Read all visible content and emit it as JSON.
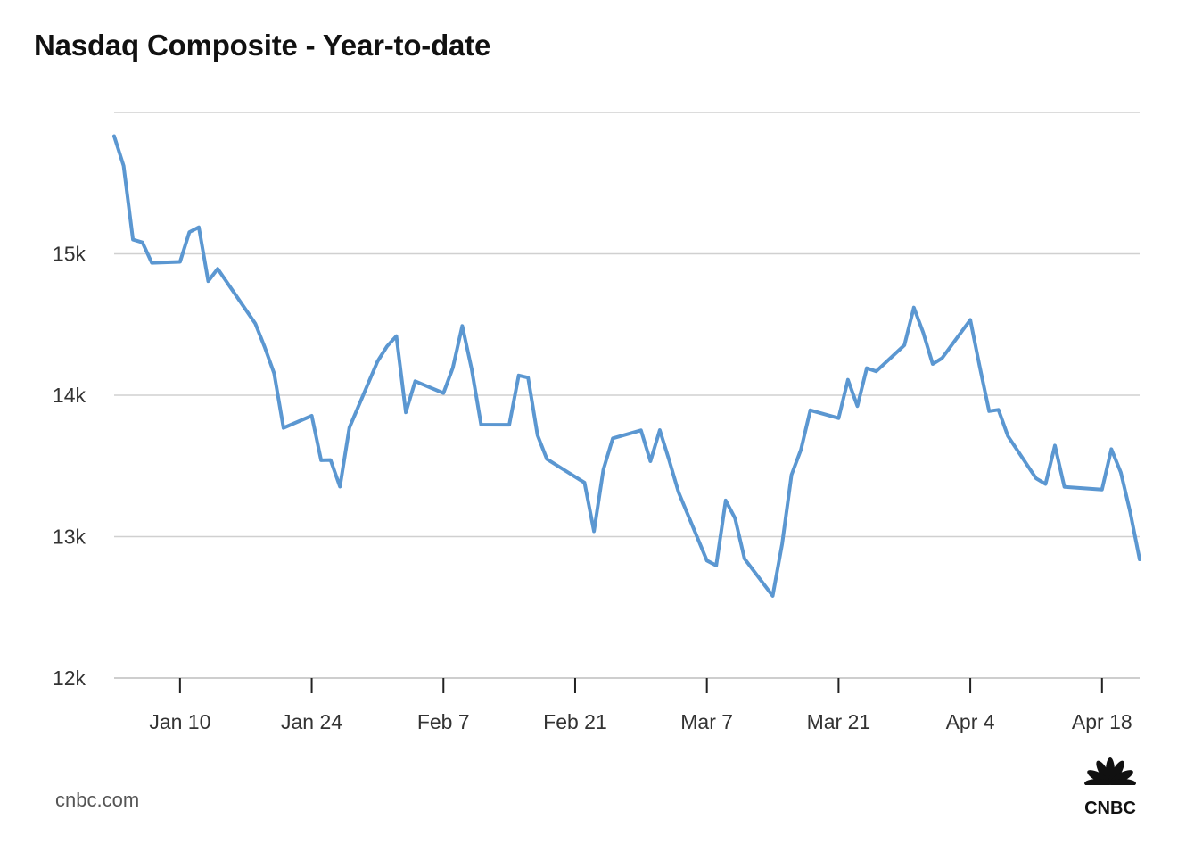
{
  "chart_data": {
    "type": "line",
    "title": "Nasdaq Composite - Year-to-date",
    "xlabel": "",
    "ylabel": "",
    "ylim": [
      12000,
      16000
    ],
    "yticks": [
      12000,
      13000,
      14000,
      15000
    ],
    "ytick_labels": [
      "12k",
      "13k",
      "14k",
      "15k"
    ],
    "xlim": [
      "2022-01-03",
      "2022-04-22"
    ],
    "xticks": [
      "2022-01-10",
      "2022-01-24",
      "2022-02-07",
      "2022-02-21",
      "2022-03-07",
      "2022-03-21",
      "2022-04-04",
      "2022-04-18"
    ],
    "xtick_labels": [
      "Jan 10",
      "Jan 24",
      "Feb 7",
      "Feb 21",
      "Mar 7",
      "Mar 21",
      "Apr 4",
      "Apr 18"
    ],
    "grid": true,
    "series_color": "#5b97d1",
    "series": [
      {
        "name": "",
        "x": [
          "2022-01-03",
          "2022-01-04",
          "2022-01-05",
          "2022-01-06",
          "2022-01-07",
          "2022-01-10",
          "2022-01-11",
          "2022-01-12",
          "2022-01-13",
          "2022-01-14",
          "2022-01-18",
          "2022-01-19",
          "2022-01-20",
          "2022-01-21",
          "2022-01-24",
          "2022-01-25",
          "2022-01-26",
          "2022-01-27",
          "2022-01-28",
          "2022-01-31",
          "2022-02-01",
          "2022-02-02",
          "2022-02-03",
          "2022-02-04",
          "2022-02-07",
          "2022-02-08",
          "2022-02-09",
          "2022-02-10",
          "2022-02-11",
          "2022-02-14",
          "2022-02-15",
          "2022-02-16",
          "2022-02-17",
          "2022-02-18",
          "2022-02-22",
          "2022-02-23",
          "2022-02-24",
          "2022-02-25",
          "2022-02-28",
          "2022-03-01",
          "2022-03-02",
          "2022-03-03",
          "2022-03-04",
          "2022-03-07",
          "2022-03-08",
          "2022-03-09",
          "2022-03-10",
          "2022-03-11",
          "2022-03-14",
          "2022-03-15",
          "2022-03-16",
          "2022-03-17",
          "2022-03-18",
          "2022-03-21",
          "2022-03-22",
          "2022-03-23",
          "2022-03-24",
          "2022-03-25",
          "2022-03-28",
          "2022-03-29",
          "2022-03-30",
          "2022-03-31",
          "2022-04-01",
          "2022-04-04",
          "2022-04-05",
          "2022-04-06",
          "2022-04-07",
          "2022-04-08",
          "2022-04-11",
          "2022-04-12",
          "2022-04-13",
          "2022-04-14",
          "2022-04-18",
          "2022-04-19",
          "2022-04-20",
          "2022-04-21",
          "2022-04-22"
        ],
        "values": [
          15833,
          15623,
          15100,
          15081,
          14936,
          14943,
          15154,
          15188,
          14807,
          14894,
          14507,
          14341,
          14155,
          13769,
          13855,
          13540,
          13542,
          13353,
          13771,
          14240,
          14346,
          14418,
          13879,
          14099,
          14015,
          14194,
          14490,
          14186,
          13792,
          13791,
          14140,
          14124,
          13717,
          13548,
          13382,
          13038,
          13474,
          13695,
          13752,
          13533,
          13753,
          13538,
          13313,
          12831,
          12796,
          13256,
          13130,
          12844,
          12581,
          12948,
          13437,
          13615,
          13894,
          13838,
          14109,
          13923,
          14191,
          14169,
          14354,
          14620,
          14443,
          14221,
          14262,
          14533,
          14204,
          13888,
          13897,
          13711,
          13412,
          13372,
          13644,
          13352,
          13333,
          13619,
          13454,
          13174,
          12839
        ]
      }
    ]
  },
  "source": {
    "text": "cnbc.com"
  },
  "logo": {
    "name": "cnbc-peacock-logo",
    "text": "CNBC"
  }
}
